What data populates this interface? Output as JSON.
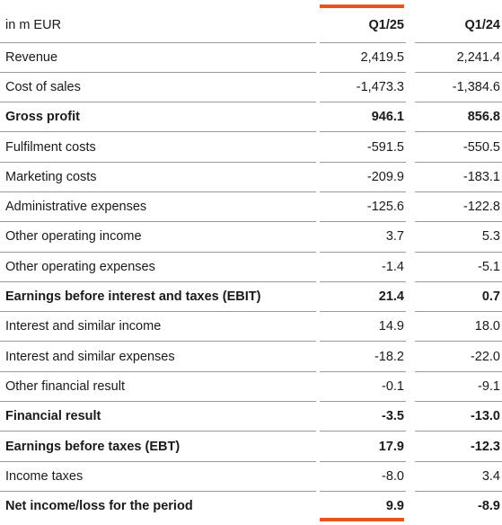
{
  "header": {
    "unit_label": "in m EUR",
    "columns": [
      "Q1/25",
      "Q1/24"
    ]
  },
  "accent_color": "#e8541e",
  "rows": [
    {
      "label": "Revenue",
      "q1_25": "2,419.5",
      "q1_24": "2,241.4",
      "bold": false
    },
    {
      "label": "Cost of sales",
      "q1_25": "-1,473.3",
      "q1_24": "-1,384.6",
      "bold": false
    },
    {
      "label": "Gross profit",
      "q1_25": "946.1",
      "q1_24": "856.8",
      "bold": true
    },
    {
      "label": "Fulfilment costs",
      "q1_25": "-591.5",
      "q1_24": "-550.5",
      "bold": false
    },
    {
      "label": "Marketing costs",
      "q1_25": "-209.9",
      "q1_24": "-183.1",
      "bold": false
    },
    {
      "label": "Administrative expenses",
      "q1_25": "-125.6",
      "q1_24": "-122.8",
      "bold": false
    },
    {
      "label": "Other operating income",
      "q1_25": "3.7",
      "q1_24": "5.3",
      "bold": false
    },
    {
      "label": "Other operating expenses",
      "q1_25": "-1.4",
      "q1_24": "-5.1",
      "bold": false
    },
    {
      "label": "Earnings before interest and taxes (EBIT)",
      "q1_25": "21.4",
      "q1_24": "0.7",
      "bold": true
    },
    {
      "label": "Interest and similar income",
      "q1_25": "14.9",
      "q1_24": "18.0",
      "bold": false
    },
    {
      "label": "Interest and similar expenses",
      "q1_25": "-18.2",
      "q1_24": "-22.0",
      "bold": false
    },
    {
      "label": "Other financial result",
      "q1_25": "-0.1",
      "q1_24": "-9.1",
      "bold": false
    },
    {
      "label": "Financial result",
      "q1_25": "-3.5",
      "q1_24": "-13.0",
      "bold": true
    },
    {
      "label": "Earnings before taxes (EBT)",
      "q1_25": "17.9",
      "q1_24": "-12.3",
      "bold": true
    },
    {
      "label": "Income taxes",
      "q1_25": "-8.0",
      "q1_24": "3.4",
      "bold": false
    },
    {
      "label": "Net income/loss for the period",
      "q1_25": "9.9",
      "q1_24": "-8.9",
      "bold": true
    }
  ]
}
